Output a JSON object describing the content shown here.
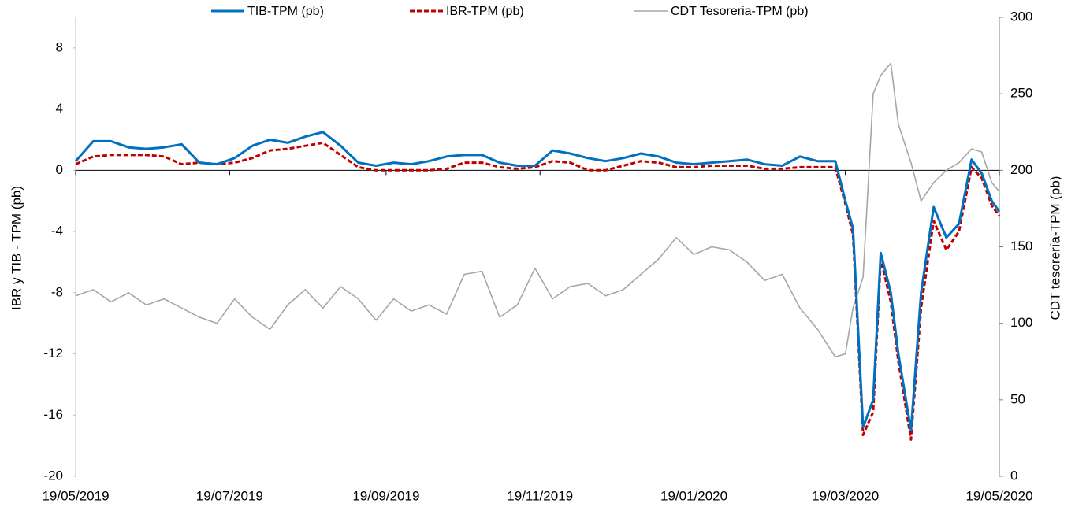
{
  "chart_data": {
    "type": "line",
    "ylabel": "IBR y TIB - TPM (pb)",
    "y2label": "CDT tesorería-TPM (pb)",
    "x": [
      "2019-05-19",
      "2019-05-26",
      "2019-06-02",
      "2019-06-09",
      "2019-06-16",
      "2019-06-23",
      "2019-06-30",
      "2019-07-07",
      "2019-07-14",
      "2019-07-21",
      "2019-07-28",
      "2019-08-04",
      "2019-08-11",
      "2019-08-18",
      "2019-08-25",
      "2019-09-01",
      "2019-09-08",
      "2019-09-15",
      "2019-09-22",
      "2019-09-29",
      "2019-10-06",
      "2019-10-13",
      "2019-10-20",
      "2019-10-27",
      "2019-11-03",
      "2019-11-10",
      "2019-11-17",
      "2019-11-24",
      "2019-12-01",
      "2019-12-08",
      "2019-12-15",
      "2019-12-22",
      "2019-12-29",
      "2020-01-05",
      "2020-01-12",
      "2020-01-19",
      "2020-01-26",
      "2020-02-02",
      "2020-02-09",
      "2020-02-16",
      "2020-02-23",
      "2020-03-01",
      "2020-03-08",
      "2020-03-15",
      "2020-03-19",
      "2020-03-22",
      "2020-03-26",
      "2020-03-30",
      "2020-04-02",
      "2020-04-06",
      "2020-04-09",
      "2020-04-14",
      "2020-04-18",
      "2020-04-23",
      "2020-04-28",
      "2020-05-03",
      "2020-05-08",
      "2020-05-12",
      "2020-05-16",
      "2020-05-19"
    ],
    "xlim": [
      "2019-05-19",
      "2020-05-19"
    ],
    "xticks": [
      {
        "value": "2019-05-19",
        "label": "19/05/2019"
      },
      {
        "value": "2019-07-19",
        "label": "19/07/2019"
      },
      {
        "value": "2019-09-19",
        "label": "19/09/2019"
      },
      {
        "value": "2019-11-19",
        "label": "19/11/2019"
      },
      {
        "value": "2020-01-19",
        "label": "19/01/2020"
      },
      {
        "value": "2020-03-19",
        "label": "19/03/2020"
      },
      {
        "value": "2020-05-19",
        "label": "19/05/2020"
      }
    ],
    "ylim": [
      -20,
      10
    ],
    "yticks": [
      -20,
      -16,
      -12,
      -8,
      -4,
      0,
      4,
      8
    ],
    "y2lim": [
      0,
      300
    ],
    "y2ticks": [
      0,
      50,
      100,
      150,
      200,
      250,
      300
    ],
    "legend": "top",
    "series": [
      {
        "name": "TIB-TPM (pb)",
        "color": "#0070c0",
        "style": "solid",
        "values": [
          0.6,
          1.9,
          1.9,
          1.5,
          1.4,
          1.5,
          1.7,
          0.5,
          0.4,
          0.8,
          1.6,
          2.0,
          1.8,
          2.2,
          2.5,
          1.6,
          0.5,
          0.3,
          0.5,
          0.4,
          0.6,
          0.9,
          1.0,
          1.0,
          0.5,
          0.3,
          0.3,
          1.3,
          1.1,
          0.8,
          0.6,
          0.8,
          1.1,
          0.9,
          0.5,
          0.4,
          0.5,
          0.6,
          0.7,
          0.4,
          0.3,
          0.9,
          0.6,
          0.6,
          -2.0,
          -3.8,
          -16.8,
          -15,
          -5.4,
          -8,
          -12,
          -17,
          -8,
          -2.4,
          -4.4,
          -3.5,
          0.7,
          -0.2,
          -2.0,
          -2.7
        ]
      },
      {
        "name": "IBR-TPM (pb)",
        "color": "#c00000",
        "style": "dashed",
        "values": [
          0.4,
          0.9,
          1.0,
          1.0,
          1.0,
          0.9,
          0.4,
          0.5,
          0.4,
          0.5,
          0.8,
          1.3,
          1.4,
          1.6,
          1.8,
          1.0,
          0.2,
          0,
          0,
          0,
          0,
          0.1,
          0.5,
          0.5,
          0.2,
          0.1,
          0.2,
          0.6,
          0.5,
          0,
          0,
          0.3,
          0.6,
          0.5,
          0.2,
          0.2,
          0.3,
          0.3,
          0.3,
          0.1,
          0.1,
          0.2,
          0.2,
          0.2,
          -2.2,
          -4.2,
          -17.3,
          -15.8,
          -5.8,
          -8.6,
          -12.5,
          -17.6,
          -9,
          -3.3,
          -5.2,
          -4,
          0.2,
          -0.5,
          -2.3,
          -3.0
        ]
      },
      {
        "name": "CDT Tesoreria-TPM (pb)",
        "color": "#a6a6a6",
        "style": "thin",
        "axis": "y2",
        "values": [
          118,
          122,
          114,
          120,
          112,
          116,
          110,
          104,
          100,
          116,
          104,
          96,
          112,
          122,
          110,
          124,
          116,
          102,
          116,
          108,
          112,
          106,
          132,
          134,
          104,
          112,
          136,
          116,
          124,
          126,
          118,
          122,
          132,
          142,
          156,
          145,
          150,
          148,
          140,
          128,
          132,
          110,
          96,
          78,
          80,
          110,
          130,
          250,
          262,
          270,
          230,
          205,
          180,
          192,
          200,
          205,
          214,
          212,
          192,
          186
        ]
      }
    ]
  }
}
